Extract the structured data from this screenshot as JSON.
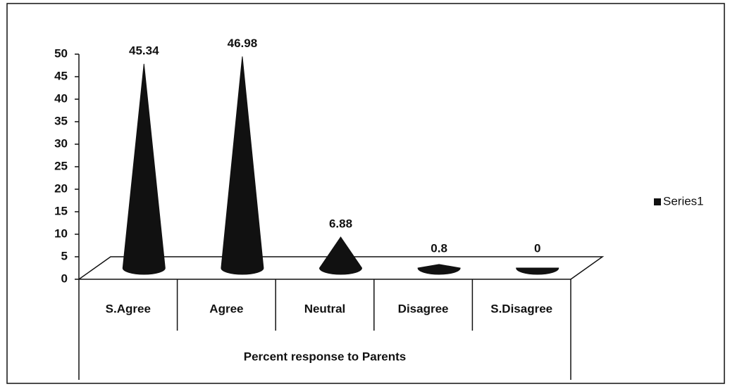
{
  "chart_data": {
    "type": "cone",
    "x_label": "Percent response to Parents",
    "categories": [
      "S.Agree",
      "Agree",
      "Neutral",
      "Disagree",
      "S.Disagree"
    ],
    "series": [
      {
        "name": "Series1",
        "color": "#111111",
        "values": [
          45.34,
          46.98,
          6.88,
          0.8,
          0
        ]
      }
    ],
    "ylim": [
      0,
      50
    ],
    "yticks": [
      0,
      5,
      10,
      15,
      20,
      25,
      30,
      35,
      40,
      45,
      50
    ],
    "legend": "right"
  }
}
